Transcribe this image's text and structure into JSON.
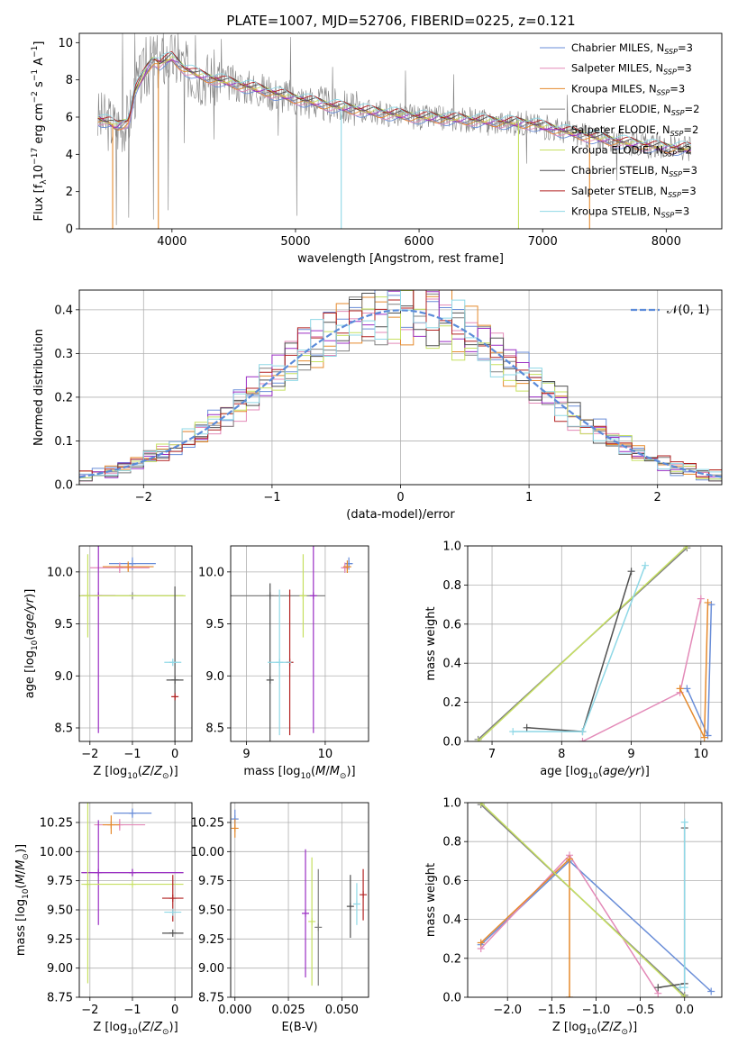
{
  "figure": {
    "title": "PLATE=1007, MJD=52706, FIBERID=0225, z=0.121"
  },
  "colors": {
    "miles_chabrier": "#6a8ed8",
    "miles_salpeter": "#e38ab8",
    "miles_kroupa": "#e58a2d",
    "elodie_chabrier": "#808080",
    "elodie_salpeter": "#9b2fc4",
    "elodie_kroupa": "#c6e060",
    "stelib_chabrier": "#505050",
    "stelib_salpeter": "#b22222",
    "stelib_kroupa": "#8fd8e6",
    "data": "#808080",
    "gauss": "#5b8bd9"
  },
  "chart_data": [
    {
      "id": "spectrum",
      "type": "line",
      "xlabel": "wavelength [Angstrom, rest frame]",
      "ylabel": "Flux [f_λ10^-17 erg cm^-2 s^-1 A^-1]",
      "xlim": [
        3250,
        8450
      ],
      "ylim": [
        0,
        10.5
      ],
      "xticks": [
        4000,
        5000,
        6000,
        7000,
        8000
      ],
      "yticks": [
        0,
        2,
        4,
        6,
        8,
        10
      ],
      "legend_position": "top-right",
      "legend": [
        {
          "name": "Chabrier MILES, N_SSP=3",
          "color": "#6a8ed8"
        },
        {
          "name": "Salpeter MILES, N_SSP=3",
          "color": "#e38ab8"
        },
        {
          "name": "Kroupa MILES, N_SSP=3",
          "color": "#e58a2d"
        },
        {
          "name": "Chabrier ELODIE, N_SSP=2",
          "color": "#808080"
        },
        {
          "name": "Salpeter ELODIE, N_SSP=2",
          "color": "#9b2fc4"
        },
        {
          "name": "Kroupa ELODIE, N_SSP=2",
          "color": "#c6e060"
        },
        {
          "name": "Chabrier STELIB, N_SSP=3",
          "color": "#505050"
        },
        {
          "name": "Salpeter STELIB, N_SSP=3",
          "color": "#b22222"
        },
        {
          "name": "Kroupa STELIB, N_SSP=3",
          "color": "#8fd8e6"
        }
      ],
      "continuum": {
        "x": [
          3400,
          3500,
          3550,
          3650,
          3700,
          3800,
          3850,
          3900,
          4000,
          4100,
          4200,
          4300,
          4500,
          4700,
          5000,
          5300,
          5600,
          6000,
          6300,
          6600,
          6900,
          7200,
          7500,
          7800,
          8000,
          8200
        ],
        "y": [
          5.9,
          5.7,
          5.5,
          5.8,
          7.4,
          8.6,
          9.1,
          8.9,
          9.2,
          8.6,
          8.3,
          8.1,
          7.8,
          7.5,
          7.0,
          6.6,
          6.3,
          6.0,
          5.9,
          5.75,
          5.65,
          5.2,
          4.8,
          4.5,
          4.35,
          4.3
        ]
      },
      "model_dropouts": [
        {
          "x": 3520,
          "color": "#e58a2d"
        },
        {
          "x": 3890,
          "color": "#e58a2d"
        },
        {
          "x": 5370,
          "color": "#8fd8e6"
        },
        {
          "x": 6805,
          "color": "#c6e060"
        },
        {
          "x": 7380,
          "color": "#e58a2d"
        }
      ],
      "data_spikes": [
        {
          "x": 3550,
          "y": 0.2
        },
        {
          "x": 3600,
          "y": 10.5
        },
        {
          "x": 3650,
          "y": 0.6
        },
        {
          "x": 3700,
          "y": 10.5
        },
        {
          "x": 3790,
          "y": 10.3
        },
        {
          "x": 3850,
          "y": 0.5
        },
        {
          "x": 3930,
          "y": 10.5
        },
        {
          "x": 3970,
          "y": 1.0
        },
        {
          "x": 4050,
          "y": 10.5
        },
        {
          "x": 4100,
          "y": 4.6
        },
        {
          "x": 4190,
          "y": 10.4
        },
        {
          "x": 4340,
          "y": 4.8
        },
        {
          "x": 4400,
          "y": 10.2
        },
        {
          "x": 4860,
          "y": 5.0
        },
        {
          "x": 4960,
          "y": 10.3
        },
        {
          "x": 5010,
          "y": 0.7
        },
        {
          "x": 5300,
          "y": 8.7
        },
        {
          "x": 5890,
          "y": 8.5
        },
        {
          "x": 6280,
          "y": 8.3
        },
        {
          "x": 6560,
          "y": 5.0
        },
        {
          "x": 6870,
          "y": 3.5
        },
        {
          "x": 7200,
          "y": 7.2
        },
        {
          "x": 7600,
          "y": 2.6
        }
      ]
    },
    {
      "id": "residual_histogram",
      "type": "line",
      "xlabel": "(data-model)/error",
      "ylabel": "Normed distribution",
      "xlim": [
        -2.5,
        2.5
      ],
      "ylim": [
        0,
        0.445
      ],
      "xticks": [
        -2,
        -1,
        0,
        1,
        2
      ],
      "yticks": [
        0.0,
        0.1,
        0.2,
        0.3,
        0.4
      ],
      "grid": true,
      "legend_position": "top-right",
      "legend": [
        {
          "name": "𝒩(0, 1)",
          "color": "#5b8bd9"
        }
      ],
      "bin_width": 0.1,
      "series": [
        {
          "name": "Chabrier MILES",
          "color": "#6a8ed8",
          "seed": 1
        },
        {
          "name": "Salpeter MILES",
          "color": "#e38ab8",
          "seed": 2
        },
        {
          "name": "Kroupa MILES",
          "color": "#e58a2d",
          "seed": 3
        },
        {
          "name": "Chabrier ELODIE",
          "color": "#808080",
          "seed": 4
        },
        {
          "name": "Salpeter ELODIE",
          "color": "#9b2fc4",
          "seed": 5
        },
        {
          "name": "Kroupa ELODIE",
          "color": "#c6e060",
          "seed": 6
        },
        {
          "name": "Chabrier STELIB",
          "color": "#505050",
          "seed": 7
        },
        {
          "name": "Salpeter STELIB",
          "color": "#b22222",
          "seed": 8
        },
        {
          "name": "Kroupa STELIB",
          "color": "#8fd8e6",
          "seed": 9
        }
      ]
    },
    {
      "id": "age_vs_Z",
      "type": "scatter",
      "xlabel": "Z [log10(Z/Z⊙)]",
      "ylabel": "age [log10(age/yr)]",
      "xlim": [
        -2.25,
        0.4
      ],
      "ylim": [
        8.37,
        10.25
      ],
      "xticks": [
        -2,
        -1,
        0
      ],
      "yticks": [
        8.5,
        9.0,
        9.5,
        10.0
      ],
      "grid": true,
      "points": [
        {
          "x": -1.0,
          "y": 10.08,
          "xerr": 0.55,
          "yerr": 0.06,
          "color": "#6a8ed8"
        },
        {
          "x": -1.3,
          "y": 10.04,
          "xerr": 0.7,
          "yerr": 0.05,
          "color": "#e38ab8"
        },
        {
          "x": -1.1,
          "y": 10.05,
          "xerr": 0.6,
          "yerr": 0.05,
          "color": "#e58a2d"
        },
        {
          "x": -1.0,
          "y": 9.77,
          "xerr": 1.2,
          "yerr": 0.0,
          "color": "#808080"
        },
        {
          "x": -1.8,
          "y": 9.77,
          "xerr": 0.4,
          "yerr": 1.32,
          "color": "#9b2fc4"
        },
        {
          "x": -2.05,
          "y": 9.77,
          "xerr": 2.3,
          "yerr": 0.4,
          "color": "#c6e060"
        },
        {
          "x": 0.0,
          "y": 8.96,
          "xerr": 0.2,
          "yerr": 0.9,
          "color": "#505050"
        },
        {
          "x": 0.0,
          "y": 8.8,
          "xerr": 0.0,
          "yerr": 0.02,
          "color": "#b22222"
        },
        {
          "x": -0.05,
          "y": 9.13,
          "xerr": 0.2,
          "yerr": 0.0,
          "color": "#8fd8e6"
        }
      ]
    },
    {
      "id": "age_vs_mass",
      "type": "scatter",
      "xlabel": "mass [log10(M/M⊙)]",
      "ylabel": "",
      "xlim": [
        8.8,
        10.55
      ],
      "ylim": [
        8.37,
        10.25
      ],
      "xticks": [
        9,
        10
      ],
      "yticks": [
        8.5,
        9.0,
        9.5,
        10.0
      ],
      "grid": true,
      "points": [
        {
          "x": 10.3,
          "y": 10.08,
          "xerr": 0.05,
          "yerr": 0.06,
          "color": "#6a8ed8"
        },
        {
          "x": 10.25,
          "y": 10.04,
          "xerr": 0.05,
          "yerr": 0.05,
          "color": "#e38ab8"
        },
        {
          "x": 10.28,
          "y": 10.05,
          "xerr": 0.05,
          "yerr": 0.06,
          "color": "#e58a2d"
        },
        {
          "x": 9.3,
          "y": 9.77,
          "xerr": 0.7,
          "yerr": 0.0,
          "color": "#808080"
        },
        {
          "x": 9.85,
          "y": 9.77,
          "xerr": 0.0,
          "yerr": 1.32,
          "color": "#9b2fc4"
        },
        {
          "x": 9.72,
          "y": 9.77,
          "xerr": 0.0,
          "yerr": 0.4,
          "color": "#c6e060"
        },
        {
          "x": 9.3,
          "y": 8.96,
          "xerr": 0.0,
          "yerr": 0.93,
          "color": "#505050"
        },
        {
          "x": 9.55,
          "y": 9.13,
          "xerr": 0.0,
          "yerr": 0.7,
          "color": "#b22222"
        },
        {
          "x": 9.42,
          "y": 9.13,
          "xerr": 0.15,
          "yerr": 0.7,
          "color": "#8fd8e6"
        }
      ]
    },
    {
      "id": "massweight_vs_age",
      "type": "line",
      "xlabel": "age [log10(age/yr)]",
      "ylabel": "mass weight",
      "xlim": [
        6.65,
        10.3
      ],
      "ylim": [
        0,
        1.0
      ],
      "xticks": [
        7,
        8,
        9,
        10
      ],
      "yticks": [
        0.0,
        0.2,
        0.4,
        0.6,
        0.8,
        1.0
      ],
      "grid": true,
      "series": [
        {
          "name": "Chabrier MILES",
          "color": "#6a8ed8",
          "x": [
            9.8,
            10.1,
            10.15
          ],
          "y": [
            0.27,
            0.03,
            0.7
          ]
        },
        {
          "name": "Salpeter MILES",
          "color": "#e38ab8",
          "x": [
            8.3,
            9.7,
            10.0
          ],
          "y": [
            0.0,
            0.25,
            0.73
          ]
        },
        {
          "name": "Kroupa MILES",
          "color": "#e58a2d",
          "x": [
            9.7,
            10.05,
            10.1
          ],
          "y": [
            0.27,
            0.02,
            0.71
          ]
        },
        {
          "name": "Chabrier ELODIE",
          "color": "#808080",
          "x": [
            6.8,
            9.8
          ],
          "y": [
            0.01,
            0.99
          ]
        },
        {
          "name": "Kroupa ELODIE",
          "color": "#c6e060",
          "x": [
            6.8,
            9.8
          ],
          "y": [
            0.0,
            1.0
          ]
        },
        {
          "name": "Chabrier STELIB",
          "color": "#505050",
          "x": [
            7.5,
            8.3,
            9.0
          ],
          "y": [
            0.07,
            0.05,
            0.87
          ]
        },
        {
          "name": "Kroupa STELIB",
          "color": "#8fd8e6",
          "x": [
            7.3,
            8.3,
            9.2
          ],
          "y": [
            0.05,
            0.05,
            0.9
          ]
        }
      ]
    },
    {
      "id": "mass_vs_Z",
      "type": "scatter",
      "xlabel": "Z [log10(Z/Z⊙)]",
      "ylabel": "mass [log10(M/M⊙)]",
      "xlim": [
        -2.25,
        0.4
      ],
      "ylim": [
        8.75,
        10.42
      ],
      "xticks": [
        -2,
        -1,
        0
      ],
      "yticks": [
        8.75,
        9.0,
        9.25,
        9.5,
        9.75,
        10.0,
        10.25
      ],
      "grid": true,
      "points": [
        {
          "x": -1.0,
          "y": 10.33,
          "xerr": 0.45,
          "yerr": 0.04,
          "color": "#6a8ed8"
        },
        {
          "x": -1.3,
          "y": 10.23,
          "xerr": 0.6,
          "yerr": 0.05,
          "color": "#e38ab8"
        },
        {
          "x": -1.5,
          "y": 10.23,
          "xerr": 0.2,
          "yerr": 0.08,
          "color": "#e58a2d"
        },
        {
          "x": -1.0,
          "y": 9.82,
          "xerr": 1.2,
          "yerr": 0.0,
          "color": "#808080"
        },
        {
          "x": -1.0,
          "y": 9.82,
          "xerr": 1.2,
          "yerr": 0.0,
          "color": "#9b2fc4"
        },
        {
          "x": -1.8,
          "y": 9.82,
          "xerr": 0.0,
          "yerr": 0.45,
          "color": "#9b2fc4"
        },
        {
          "x": -1.0,
          "y": 9.72,
          "xerr": 1.2,
          "yerr": 0.0,
          "color": "#c6e060"
        },
        {
          "x": -2.05,
          "y": 9.72,
          "xerr": 0.0,
          "yerr": 0.85,
          "color": "#c6e060"
        },
        {
          "x": -0.05,
          "y": 9.3,
          "xerr": 0.25,
          "yerr": 0.0,
          "color": "#505050"
        },
        {
          "x": -0.05,
          "y": 9.6,
          "xerr": 0.25,
          "yerr": 0.2,
          "color": "#b22222"
        },
        {
          "x": -0.05,
          "y": 9.48,
          "xerr": 0.2,
          "yerr": 0.0,
          "color": "#8fd8e6"
        }
      ]
    },
    {
      "id": "mass_vs_ebv",
      "type": "scatter",
      "xlabel": "E(B-V)",
      "ylabel": "",
      "xlim": [
        -0.002,
        0.0625
      ],
      "ylim": [
        8.75,
        10.42
      ],
      "xticks": [
        0.0,
        0.025,
        0.05
      ],
      "yticks": [
        8.75,
        9.0,
        9.25,
        9.5,
        9.75,
        10.0,
        10.25
      ],
      "grid": true,
      "points": [
        {
          "x": 0.0,
          "y": 10.28,
          "xerr": 0.0,
          "yerr": 0.08,
          "color": "#6a8ed8"
        },
        {
          "x": 0.0,
          "y": 10.2,
          "xerr": 0.0,
          "yerr": 0.08,
          "color": "#e58a2d"
        },
        {
          "x": 0.033,
          "y": 9.47,
          "xerr": 0.0,
          "yerr": 0.55,
          "color": "#9b2fc4"
        },
        {
          "x": 0.036,
          "y": 9.4,
          "xerr": 0.0,
          "yerr": 0.55,
          "color": "#c6e060"
        },
        {
          "x": 0.039,
          "y": 9.35,
          "xerr": 0.0,
          "yerr": 0.5,
          "color": "#808080"
        },
        {
          "x": 0.054,
          "y": 9.53,
          "xerr": 0.0,
          "yerr": 0.27,
          "color": "#505050"
        },
        {
          "x": 0.057,
          "y": 9.55,
          "xerr": 0.0,
          "yerr": 0.18,
          "color": "#8fd8e6"
        },
        {
          "x": 0.06,
          "y": 9.63,
          "xerr": 0.0,
          "yerr": 0.22,
          "color": "#b22222"
        }
      ]
    },
    {
      "id": "massweight_vs_Z",
      "type": "line",
      "xlabel": "Z [log10(Z/Z⊙)]",
      "ylabel": "mass weight",
      "xlim": [
        -2.45,
        0.42
      ],
      "ylim": [
        0,
        1.0
      ],
      "xticks": [
        -2.0,
        -1.5,
        -1.0,
        -0.5,
        0.0
      ],
      "yticks": [
        0.0,
        0.2,
        0.4,
        0.6,
        0.8,
        1.0
      ],
      "grid": true,
      "series": [
        {
          "name": "Chabrier MILES",
          "color": "#6a8ed8",
          "x": [
            -2.3,
            -1.3,
            0.3
          ],
          "y": [
            0.27,
            0.7,
            0.03
          ]
        },
        {
          "name": "Salpeter MILES",
          "color": "#e38ab8",
          "x": [
            -2.3,
            -1.3,
            -0.3
          ],
          "y": [
            0.25,
            0.73,
            0.02
          ]
        },
        {
          "name": "Kroupa MILES",
          "color": "#e58a2d",
          "x": [
            -2.3,
            -1.3,
            -1.3
          ],
          "y": [
            0.28,
            0.71,
            0.0
          ]
        },
        {
          "name": "Chabrier ELODIE",
          "color": "#808080",
          "x": [
            -2.3,
            0.0
          ],
          "y": [
            0.99,
            0.01
          ]
        },
        {
          "name": "Kroupa ELODIE",
          "color": "#c6e060",
          "x": [
            -2.3,
            0.0
          ],
          "y": [
            1.0,
            0.0
          ]
        },
        {
          "name": "Chabrier STELIB",
          "color": "#505050",
          "x": [
            -0.3,
            0.0,
            0.0
          ],
          "y": [
            0.05,
            0.07,
            0.87
          ]
        },
        {
          "name": "Kroupa STELIB",
          "color": "#8fd8e6",
          "x": [
            -0.05,
            0.0,
            0.0
          ],
          "y": [
            0.05,
            0.05,
            0.9
          ]
        }
      ]
    }
  ]
}
